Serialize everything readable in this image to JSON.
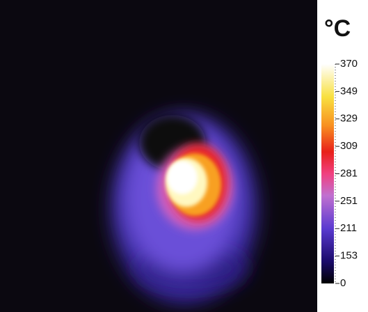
{
  "colorbar": {
    "unit": "°C",
    "ticks": [
      "370",
      "349",
      "329",
      "309",
      "281",
      "251",
      "211",
      "153",
      "0"
    ]
  }
}
